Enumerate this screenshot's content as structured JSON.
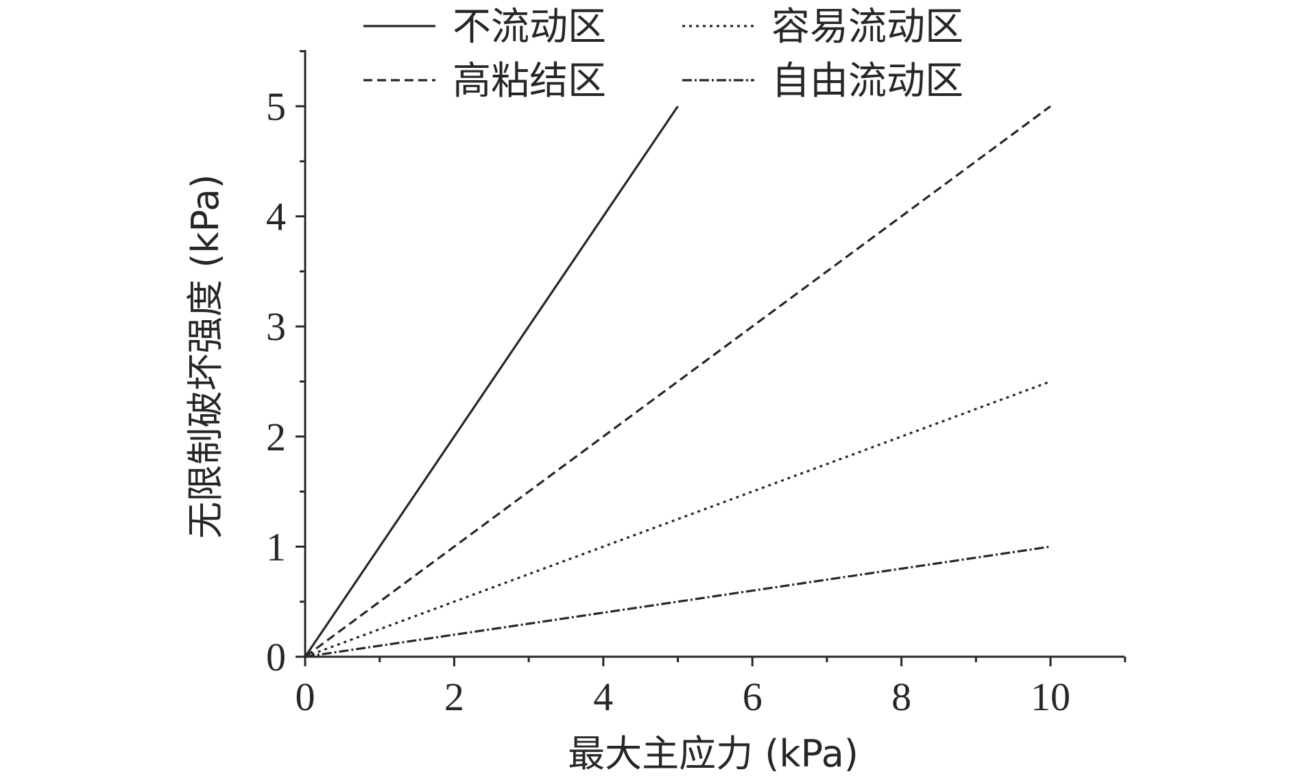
{
  "chart_data": {
    "type": "line",
    "xlabel": "最大主应力 (kPa)",
    "ylabel": "无限制破坏强度 (kPa)",
    "xlim": [
      0,
      11
    ],
    "ylim": [
      0,
      5.5
    ],
    "x_ticks": [
      0,
      2,
      4,
      6,
      8,
      10
    ],
    "y_ticks": [
      0,
      1,
      2,
      3,
      4,
      5
    ],
    "x_minor_step": 1,
    "y_minor_step": 0.5,
    "grid": false,
    "legend_placement": "top",
    "series": [
      {
        "name": "不流动区",
        "style": "solid",
        "x": [
          0,
          5
        ],
        "y": [
          0,
          5
        ]
      },
      {
        "name": "容易流动区",
        "style": "dotted",
        "x": [
          0,
          10
        ],
        "y": [
          0,
          2.5
        ]
      },
      {
        "name": "高粘结区",
        "style": "dashed",
        "x": [
          0,
          10
        ],
        "y": [
          0,
          5
        ]
      },
      {
        "name": "自由流动区",
        "style": "dashdot",
        "x": [
          0,
          10
        ],
        "y": [
          0,
          1
        ]
      }
    ]
  },
  "colors": {
    "ink": "#262626",
    "background": "#ffffff"
  }
}
